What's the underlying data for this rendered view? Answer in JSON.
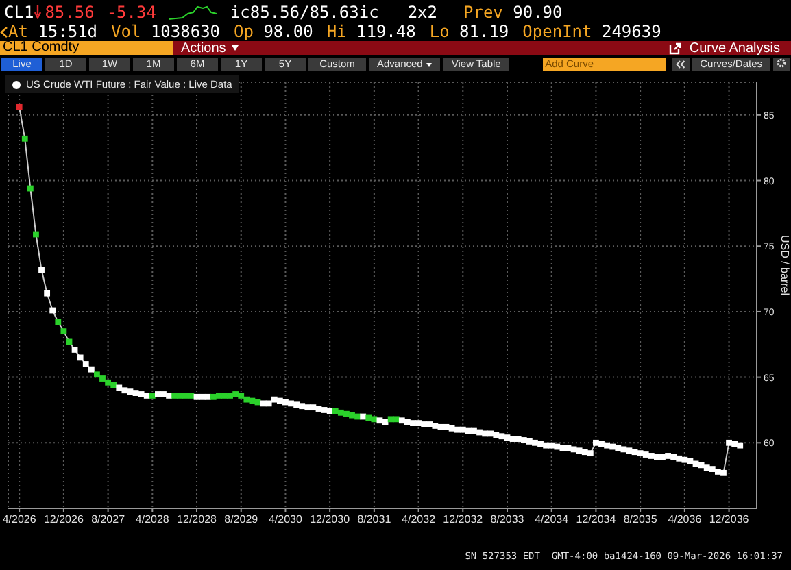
{
  "chart_data": {
    "type": "line",
    "ylabel": "USD / barrel",
    "annotations": [
      "CL1",
      "85.56",
      "-5.34",
      "ic85.56/85.63ic",
      "2x2",
      "Prev 90.90",
      "At 15:51d",
      "Vol 1038630",
      "Op 98.00",
      "Hi 119.48",
      "Lo 81.19",
      "OpenInt 249639",
      "CL1 Comdty",
      "Actions",
      "Curve Analysis",
      "Live",
      "1D",
      "1W",
      "1M",
      "6M",
      "1Y",
      "5Y",
      "Custom",
      "Advanced",
      "View Table",
      "Add Curve",
      "Curves/Dates",
      "SN 527353 EDT  GMT-4:00 ba1424-160 09-Mar-2026 16:01:37"
    ],
    "x": [
      "2026-04",
      "2026-05",
      "2026-06",
      "2026-07",
      "2026-08",
      "2026-09",
      "2026-10",
      "2026-11",
      "2026-12",
      "2027-01",
      "2027-02",
      "2027-03",
      "2027-04",
      "2027-05",
      "2027-06",
      "2027-07",
      "2027-08",
      "2027-09",
      "2027-10",
      "2027-11",
      "2027-12",
      "2028-01",
      "2028-02",
      "2028-03",
      "2028-04",
      "2028-05",
      "2028-06",
      "2028-07",
      "2028-08",
      "2028-09",
      "2028-10",
      "2028-11",
      "2028-12",
      "2029-01",
      "2029-02",
      "2029-03",
      "2029-04",
      "2029-05",
      "2029-06",
      "2029-07",
      "2029-08",
      "2029-09",
      "2029-10",
      "2029-11",
      "2029-12",
      "2030-01",
      "2030-02",
      "2030-03",
      "2030-04",
      "2030-05",
      "2030-06",
      "2030-07",
      "2030-08",
      "2030-09",
      "2030-10",
      "2030-11",
      "2030-12",
      "2031-01",
      "2031-02",
      "2031-03",
      "2031-04",
      "2031-05",
      "2031-06",
      "2031-07",
      "2031-08",
      "2031-09",
      "2031-10",
      "2031-11",
      "2031-12",
      "2032-01",
      "2032-02",
      "2032-03",
      "2032-04",
      "2032-05",
      "2032-06",
      "2032-07",
      "2032-08",
      "2032-09",
      "2032-10",
      "2032-11",
      "2032-12",
      "2033-01",
      "2033-02",
      "2033-03",
      "2033-04",
      "2033-05",
      "2033-06",
      "2033-07",
      "2033-08",
      "2033-09",
      "2033-10",
      "2033-11",
      "2033-12",
      "2034-01",
      "2034-02",
      "2034-03",
      "2034-04",
      "2034-05",
      "2034-06",
      "2034-07",
      "2034-08",
      "2034-09",
      "2034-10",
      "2034-11",
      "2034-12",
      "2035-01",
      "2035-02",
      "2035-03",
      "2035-04",
      "2035-05",
      "2035-06",
      "2035-07",
      "2035-08",
      "2035-09",
      "2035-10",
      "2035-11",
      "2035-12",
      "2036-01",
      "2036-02",
      "2036-03",
      "2036-04",
      "2036-05",
      "2036-06",
      "2036-07",
      "2036-08",
      "2036-09",
      "2036-10",
      "2036-11",
      "2036-12",
      "2037-01",
      "2037-02"
    ],
    "series": [
      {
        "name": "US Crude WTI Future : Fair Value : Live Data",
        "color": "#ffffff",
        "values": [
          85.6,
          83.2,
          79.4,
          75.9,
          73.2,
          71.4,
          70.1,
          69.2,
          68.5,
          67.7,
          67.1,
          66.5,
          66.0,
          65.6,
          65.2,
          64.9,
          64.6,
          64.4,
          64.2,
          64.0,
          63.9,
          63.8,
          63.7,
          63.6,
          63.6,
          63.7,
          63.7,
          63.6,
          63.6,
          63.6,
          63.6,
          63.6,
          63.5,
          63.5,
          63.5,
          63.5,
          63.6,
          63.6,
          63.6,
          63.7,
          63.6,
          63.3,
          63.2,
          63.1,
          63.0,
          63.0,
          63.3,
          63.2,
          63.1,
          63.0,
          62.9,
          62.8,
          62.7,
          62.7,
          62.6,
          62.5,
          62.4,
          62.4,
          62.3,
          62.2,
          62.1,
          62.0,
          62.0,
          61.9,
          61.8,
          61.7,
          61.6,
          61.8,
          61.8,
          61.7,
          61.6,
          61.5,
          61.5,
          61.4,
          61.4,
          61.3,
          61.2,
          61.2,
          61.1,
          61.0,
          61.0,
          60.9,
          60.9,
          60.8,
          60.7,
          60.7,
          60.6,
          60.5,
          60.4,
          60.3,
          60.3,
          60.2,
          60.1,
          60.0,
          59.9,
          59.8,
          59.8,
          59.7,
          59.6,
          59.6,
          59.5,
          59.4,
          59.3,
          59.2,
          60.0,
          59.9,
          59.8,
          59.7,
          59.6,
          59.5,
          59.4,
          59.3,
          59.2,
          59.1,
          59.0,
          58.9,
          58.9,
          59.0,
          58.9,
          58.8,
          58.7,
          58.6,
          58.4,
          58.3,
          58.1,
          58.0,
          57.8,
          57.7,
          60.0,
          59.9,
          59.8
        ],
        "colors": [
          "#e0282d",
          "#2bd12b",
          "#2bd12b",
          "#2bd12b",
          "#ffffff",
          "#ffffff",
          "#ffffff",
          "#2bd12b",
          "#2bd12b",
          "#2bd12b",
          "#ffffff",
          "#ffffff",
          "#ffffff",
          "#ffffff",
          "#2bd12b",
          "#2bd12b",
          "#2bd12b",
          "#2bd12b",
          "#ffffff",
          "#ffffff",
          "#ffffff",
          "#ffffff",
          "#ffffff",
          "#ffffff",
          "#2bd12b",
          "#ffffff",
          "#ffffff",
          "#ffffff",
          "#2bd12b",
          "#2bd12b",
          "#2bd12b",
          "#2bd12b",
          "#ffffff",
          "#ffffff",
          "#ffffff",
          "#2bd12b",
          "#2bd12b",
          "#2bd12b",
          "#2bd12b",
          "#2bd12b",
          "#2bd12b",
          "#2bd12b",
          "#2bd12b",
          "#2bd12b",
          "#ffffff",
          "#ffffff",
          "#ffffff",
          "#ffffff",
          "#ffffff",
          "#ffffff",
          "#ffffff",
          "#ffffff",
          "#ffffff",
          "#ffffff",
          "#ffffff",
          "#ffffff",
          "#ffffff",
          "#2bd12b",
          "#2bd12b",
          "#2bd12b",
          "#2bd12b",
          "#2bd12b",
          "#ffffff",
          "#2bd12b",
          "#2bd12b",
          "#ffffff",
          "#ffffff",
          "#2bd12b",
          "#2bd12b",
          "#ffffff",
          "#ffffff",
          "#ffffff",
          "#ffffff",
          "#ffffff",
          "#ffffff",
          "#ffffff",
          "#ffffff",
          "#ffffff",
          "#ffffff",
          "#ffffff",
          "#ffffff",
          "#ffffff",
          "#ffffff",
          "#ffffff",
          "#ffffff",
          "#ffffff",
          "#ffffff",
          "#ffffff",
          "#ffffff",
          "#ffffff",
          "#ffffff",
          "#ffffff",
          "#ffffff",
          "#ffffff",
          "#ffffff",
          "#ffffff",
          "#ffffff",
          "#ffffff",
          "#ffffff",
          "#ffffff",
          "#ffffff",
          "#ffffff",
          "#ffffff",
          "#ffffff",
          "#ffffff",
          "#ffffff",
          "#ffffff",
          "#ffffff",
          "#ffffff",
          "#ffffff",
          "#ffffff",
          "#ffffff",
          "#ffffff",
          "#ffffff",
          "#ffffff",
          "#ffffff",
          "#ffffff",
          "#ffffff",
          "#ffffff",
          "#ffffff",
          "#ffffff",
          "#ffffff",
          "#ffffff",
          "#ffffff",
          "#ffffff",
          "#ffffff",
          "#ffffff",
          "#ffffff",
          "#ffffff",
          "#ffffff",
          "#ffffff"
        ]
      }
    ],
    "xlim": [
      "2026-02",
      "2037-05"
    ],
    "xticks": [
      {
        "value": "2026-04",
        "label": "4/2026"
      },
      {
        "value": "2026-12",
        "label": "12/2026"
      },
      {
        "value": "2027-08",
        "label": "8/2027"
      },
      {
        "value": "2028-04",
        "label": "4/2028"
      },
      {
        "value": "2028-12",
        "label": "12/2028"
      },
      {
        "value": "2029-08",
        "label": "8/2029"
      },
      {
        "value": "2030-04",
        "label": "4/2030"
      },
      {
        "value": "2030-12",
        "label": "12/2030"
      },
      {
        "value": "2031-08",
        "label": "8/2031"
      },
      {
        "value": "2032-04",
        "label": "4/2032"
      },
      {
        "value": "2032-12",
        "label": "12/2032"
      },
      {
        "value": "2033-08",
        "label": "8/2033"
      },
      {
        "value": "2034-04",
        "label": "4/2034"
      },
      {
        "value": "2034-12",
        "label": "12/2034"
      },
      {
        "value": "2035-08",
        "label": "8/2035"
      },
      {
        "value": "2036-04",
        "label": "4/2036"
      },
      {
        "value": "2036-12",
        "label": "12/2036"
      }
    ],
    "ylim": [
      55,
      87.5
    ],
    "yticks": [
      60,
      65,
      70,
      75,
      80,
      85
    ],
    "grid": true,
    "legend": "top left",
    "marker": "square",
    "line_style": "solid"
  }
}
